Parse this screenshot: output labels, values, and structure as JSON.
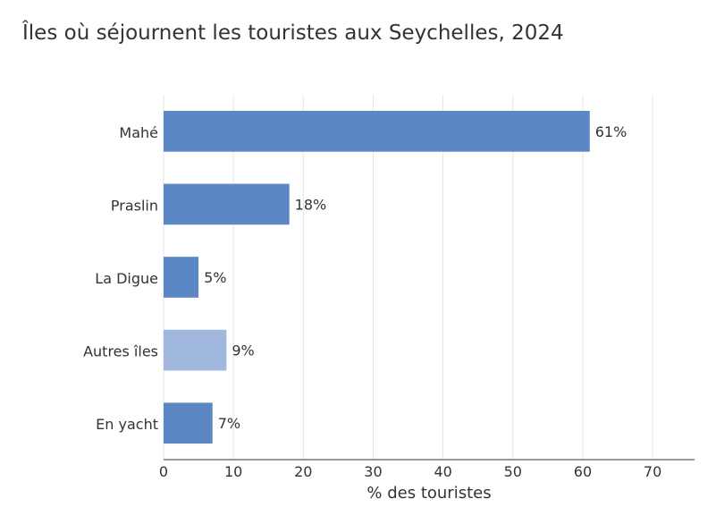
{
  "chart_data": {
    "type": "bar",
    "orientation": "horizontal",
    "title": "Îles où séjournent les touristes aux Seychelles, 2024",
    "xlabel": "% des touristes",
    "ylabel": "",
    "categories": [
      "Mahé",
      "Praslin",
      "La Digue",
      "Autres îles",
      "En yacht"
    ],
    "values": [
      61,
      18,
      5,
      9,
      7
    ],
    "data_labels": [
      "61%",
      "18%",
      "5%",
      "9%",
      "7%"
    ],
    "xlim": [
      0,
      76
    ],
    "xticks": [
      0,
      10,
      20,
      30,
      40,
      50,
      60,
      70
    ],
    "grid": true,
    "legend": "none",
    "colors": {
      "default": "#5b88c5",
      "highlight": "#a0b8de",
      "highlight_category": "Autres îles",
      "grid": "#e6e6e6",
      "axis": "#333333"
    }
  }
}
